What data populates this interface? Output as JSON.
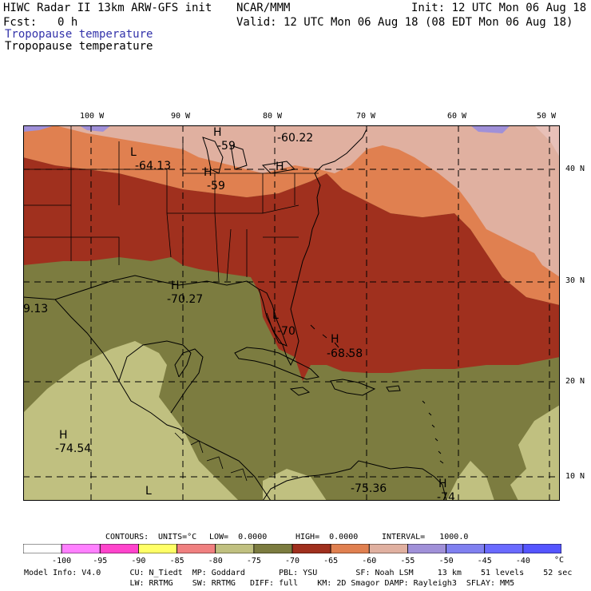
{
  "header": {
    "title_left": "HIWC Radar II 13km ARW-GFS init",
    "org": "NCAR/MMM",
    "init": "Init: 12 UTC Mon 06 Aug 18",
    "fcst_label": "Fcst:",
    "fcst_value": "0 h",
    "valid": "Valid: 12 UTC Mon 06 Aug 18 (08 EDT Mon 06 Aug 18)",
    "field_line1": "Tropopause temperature",
    "field_line2": "Tropopause temperature"
  },
  "map": {
    "lon_labels": [
      "100 W",
      "90 W",
      "80 W",
      "70 W",
      "60 W",
      "50 W"
    ],
    "lat_labels": [
      "40 N",
      "30 N",
      "20 N",
      "10 N"
    ],
    "extrema": [
      {
        "letter": "L",
        "value": "-64.13"
      },
      {
        "letter": "H",
        "value": "-59"
      },
      {
        "letter": "",
        "value": "-60.22"
      },
      {
        "letter": "H",
        "value": "-59"
      },
      {
        "letter": "H",
        "value": ""
      },
      {
        "letter": "H",
        "value": "-70.27"
      },
      {
        "letter": "",
        "value": "9.13"
      },
      {
        "letter": "L",
        "value": "-70"
      },
      {
        "letter": "H",
        "value": "-68.58"
      },
      {
        "letter": "H",
        "value": "-74.54"
      },
      {
        "letter": "L",
        "value": ""
      },
      {
        "letter": "",
        "value": "-75.36"
      },
      {
        "letter": "H",
        "value": "-74"
      }
    ]
  },
  "contours_line": {
    "label": "CONTOURS:",
    "units": "UNITS=°C",
    "low": "LOW=  0.0000",
    "high": "HIGH=  0.0000",
    "interval": "INTERVAL=   1000.0"
  },
  "colorbar": {
    "colors": [
      "#ffffff",
      "#ff80ff",
      "#ff44cc",
      "#ffff66",
      "#f08080",
      "#c0c080",
      "#7c7c40",
      "#a0301e",
      "#e08050",
      "#e0b0a0",
      "#a090d8",
      "#8080f0",
      "#6a6aff",
      "#5555ff"
    ],
    "ticks": [
      "-100",
      "-95",
      "-90",
      "-85",
      "-80",
      "-75",
      "-70",
      "-65",
      "-60",
      "-55",
      "-50",
      "-45",
      "-40"
    ],
    "unit": "°C"
  },
  "footer": {
    "line1": "Model Info: V4.0      CU: N_Tiedt  MP: Goddard       PBL: YSU        SF: Noah LSM     13 km    51 levels    52 sec",
    "line2": "                      LW: RRTMG    SW: RRTMG   DIFF: full    KM: 2D Smagor DAMP: Rayleigh3  SFLAY: MM5"
  }
}
